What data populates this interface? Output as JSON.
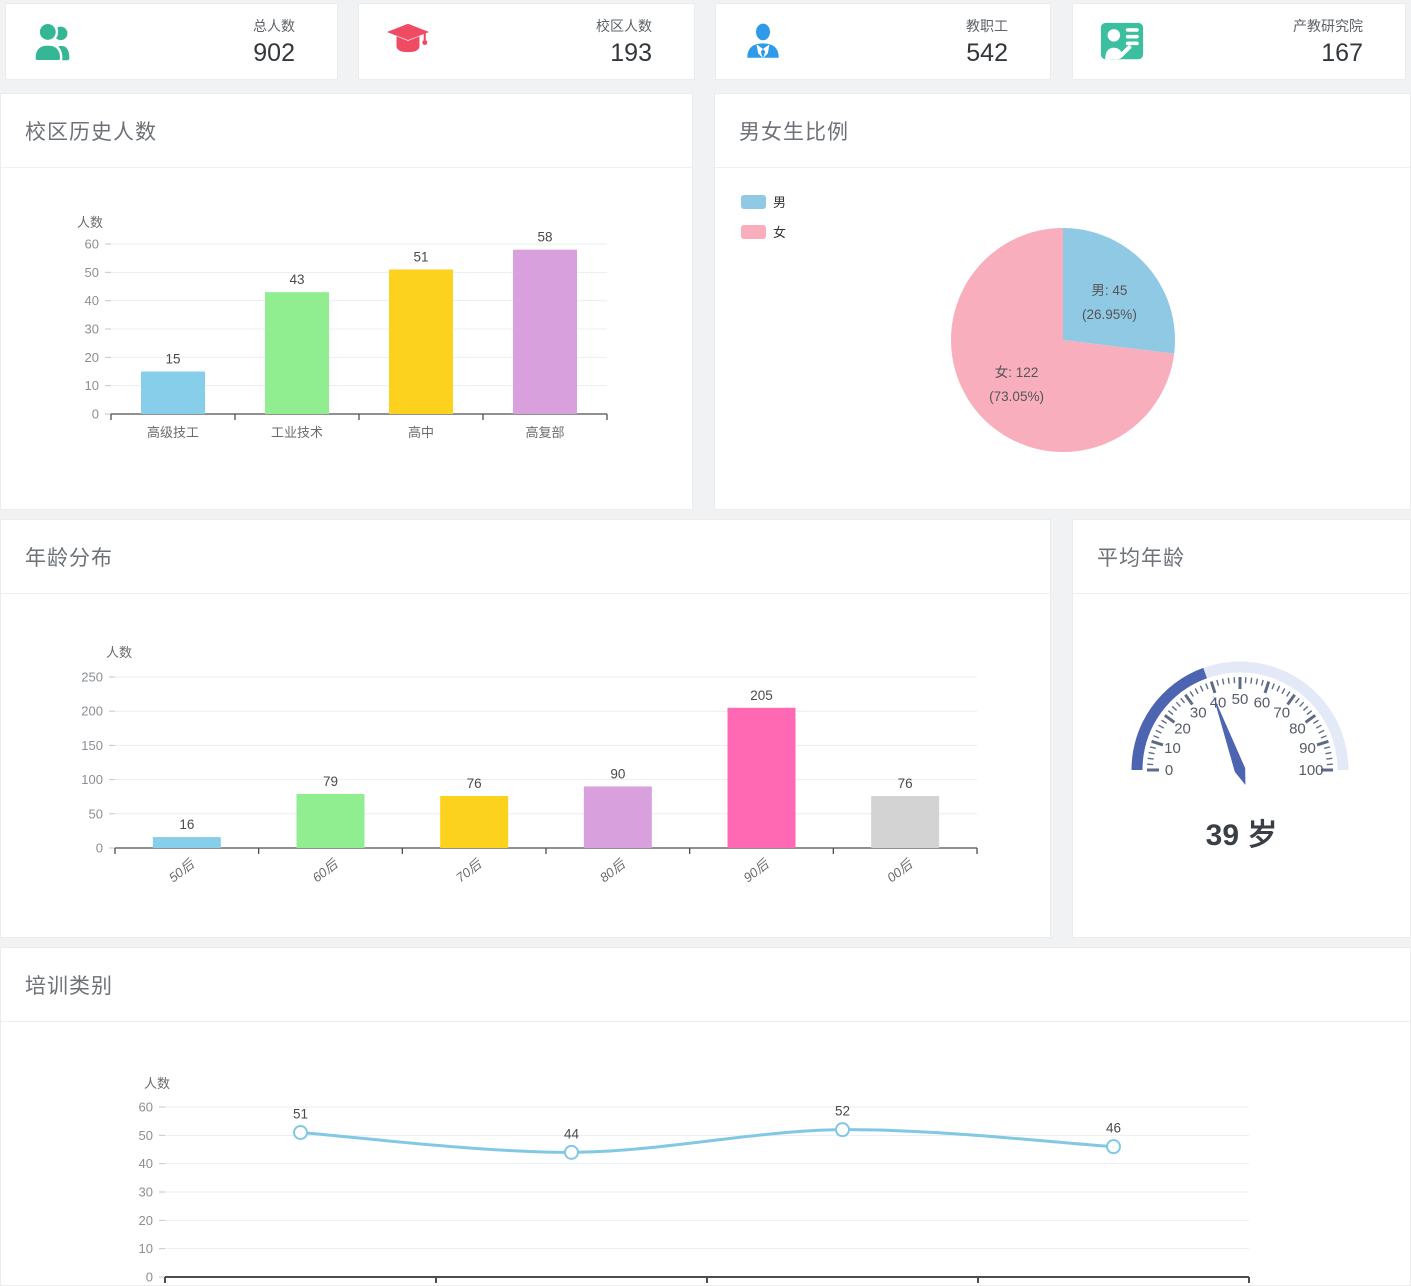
{
  "stat_cards": [
    {
      "label": "总人数",
      "value": "902",
      "icon": "users-icon",
      "icon_color": "#35b795"
    },
    {
      "label": "校区人数",
      "value": "193",
      "icon": "graduation-cap-icon",
      "icon_color": "#ef4b63"
    },
    {
      "label": "教职工",
      "value": "542",
      "icon": "staff-person-icon",
      "icon_color": "#2f9be8"
    },
    {
      "label": "产教研究院",
      "value": "167",
      "icon": "presenter-board-icon",
      "icon_color": "#3bbf9e"
    }
  ],
  "panels": {
    "campus_history": {
      "title": "校区历史人数"
    },
    "gender_ratio": {
      "title": "男女生比例"
    },
    "age_distribution": {
      "title": "年龄分布"
    },
    "average_age": {
      "title": "平均年龄",
      "display": "39 岁"
    },
    "training_category": {
      "title": "培训类别"
    }
  },
  "chart_data": [
    {
      "id": "campus_history",
      "type": "bar",
      "title": "校区历史人数",
      "ylabel": "人数",
      "categories": [
        "高级技工",
        "工业技术",
        "高中",
        "高复部"
      ],
      "values": [
        15,
        43,
        51,
        58
      ],
      "bar_colors": [
        "#87ceeb",
        "#90ee90",
        "#fdd21e",
        "#d8a0dd"
      ],
      "ylim": [
        0,
        60
      ],
      "yticks": [
        0,
        10,
        20,
        30,
        40,
        50,
        60
      ],
      "grid": true,
      "legend_position": "none"
    },
    {
      "id": "gender_ratio",
      "type": "pie",
      "title": "男女生比例",
      "series": [
        {
          "name": "男",
          "value": 45,
          "percent": "26.95%",
          "color": "#8fc9e4",
          "label_line1": "男: 45",
          "label_line2": "(26.95%)"
        },
        {
          "name": "女",
          "value": 122,
          "percent": "73.05%",
          "color": "#f8aebd",
          "label_line1": "女: 122",
          "label_line2": "(73.05%)"
        }
      ],
      "legend_position": "top-left"
    },
    {
      "id": "age_distribution",
      "type": "bar",
      "title": "年龄分布",
      "ylabel": "人数",
      "categories": [
        "50后",
        "60后",
        "70后",
        "80后",
        "90后",
        "00后"
      ],
      "values": [
        16,
        79,
        76,
        90,
        205,
        76
      ],
      "bar_colors": [
        "#87ceeb",
        "#90ee90",
        "#fdd21e",
        "#d8a0dd",
        "#ff69b4",
        "#d3d3d3"
      ],
      "ylim": [
        0,
        250
      ],
      "yticks": [
        0,
        50,
        100,
        150,
        200,
        250
      ],
      "grid": true,
      "xlabel_rotate": -38,
      "legend_position": "none"
    },
    {
      "id": "average_age",
      "type": "gauge",
      "title": "平均年龄",
      "value": 39,
      "min": 0,
      "max": 100,
      "tick_labels": [
        0,
        10,
        20,
        30,
        40,
        50,
        60,
        70,
        80,
        90,
        100
      ],
      "display": "39 岁",
      "colors": {
        "progress": "#4d64b0",
        "track": "#e3e9f6",
        "needle": "#4d64b0",
        "ticks": "#5f6b84",
        "tick_text": "#555c66"
      }
    },
    {
      "id": "training_category",
      "type": "line",
      "title": "培训类别",
      "ylabel": "人数",
      "values": [
        51,
        44,
        52,
        46
      ],
      "ylim": [
        0,
        60
      ],
      "yticks": [
        0,
        10,
        20,
        30,
        40,
        50,
        60
      ],
      "grid": true,
      "smooth": true,
      "line_color": "#82c8e5",
      "marker": "hollow-circle"
    }
  ]
}
